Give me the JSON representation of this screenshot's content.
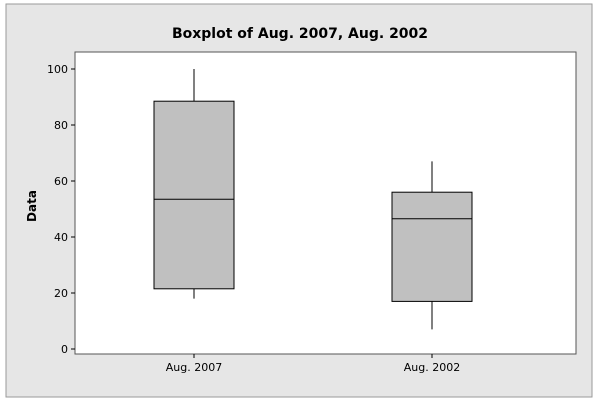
{
  "chart_data": {
    "type": "boxplot",
    "title": "Boxplot of Aug. 2007, Aug. 2002",
    "xlabel": "",
    "ylabel": "Data",
    "ylim": [
      0,
      105
    ],
    "yticks": [
      0,
      20,
      40,
      60,
      80,
      100
    ],
    "grid": false,
    "legend": "none",
    "colors": {
      "frame_bg": "#e6e6e6",
      "plot_bg": "#ffffff",
      "box_fill": "#c0c0c0",
      "stroke": "#000000"
    },
    "categories": [
      "Aug. 2007",
      "Aug. 2002"
    ],
    "boxes": [
      {
        "category": "Aug. 2007",
        "min": 18,
        "q1": 21.5,
        "median": 53.5,
        "q3": 88.5,
        "max": 100
      },
      {
        "category": "Aug. 2002",
        "min": 7,
        "q1": 17,
        "median": 46.5,
        "q3": 56,
        "max": 67
      }
    ]
  }
}
